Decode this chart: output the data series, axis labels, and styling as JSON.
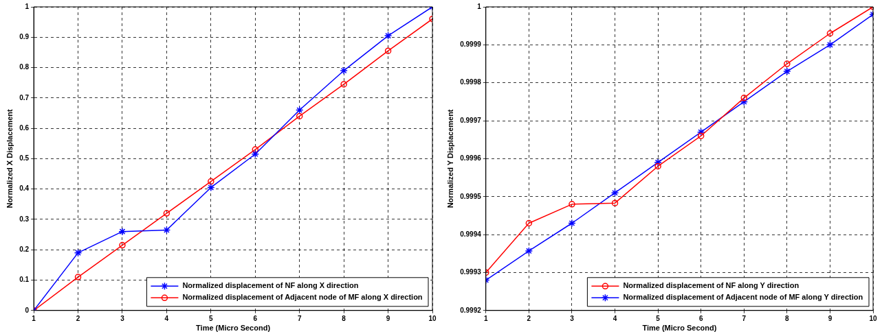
{
  "chart_data": [
    {
      "type": "line",
      "xlabel": "Time (Micro Second)",
      "ylabel": "Normalized X Displacement",
      "x": [
        1,
        2,
        3,
        4,
        5,
        6,
        7,
        8,
        9,
        10
      ],
      "xlim": [
        1,
        10
      ],
      "xticks": [
        1,
        2,
        3,
        4,
        5,
        6,
        7,
        8,
        9,
        10
      ],
      "ylim": [
        0,
        1
      ],
      "yticks": [
        0,
        0.1,
        0.2,
        0.3,
        0.4,
        0.5,
        0.6,
        0.7,
        0.8,
        0.9,
        1
      ],
      "grid": true,
      "legend": "bottom right",
      "line_style": "solid",
      "series": [
        {
          "name": "Normalized displacement of NF along X direction",
          "color": "#0000ff",
          "marker": "cross",
          "values": [
            0,
            0.19,
            0.26,
            0.265,
            0.405,
            0.515,
            0.66,
            0.79,
            0.905,
            1.0
          ]
        },
        {
          "name": "Normalized displacement of Adjacent node of MF along X direction",
          "color": "#ff0000",
          "marker": "circle",
          "values": [
            0,
            0.11,
            0.215,
            0.32,
            0.425,
            0.53,
            0.64,
            0.745,
            0.855,
            0.96
          ]
        }
      ]
    },
    {
      "type": "line",
      "xlabel": "Time (Micro Second)",
      "ylabel": "Normalized Y Displacement",
      "x": [
        1,
        2,
        3,
        4,
        5,
        6,
        7,
        8,
        9,
        10
      ],
      "xlim": [
        1,
        10
      ],
      "xticks": [
        1,
        2,
        3,
        4,
        5,
        6,
        7,
        8,
        9,
        10
      ],
      "ylim": [
        0.9992,
        1
      ],
      "yticks": [
        0.9992,
        0.9993,
        0.9994,
        0.9995,
        0.9996,
        0.9997,
        0.9998,
        0.9999,
        1
      ],
      "grid": true,
      "legend": "bottom right",
      "line_style": "solid",
      "series": [
        {
          "name": "Normalized displacement of NF along Y direction",
          "color": "#ff0000",
          "marker": "circle",
          "values": [
            0.9993,
            0.99943,
            0.99948,
            0.999483,
            0.99958,
            0.99966,
            0.99976,
            0.99985,
            0.99993,
            1.0
          ]
        },
        {
          "name": "Normalized displacement of Adjacent node of MF along Y direction",
          "color": "#0000ff",
          "marker": "cross",
          "values": [
            0.99928,
            0.999357,
            0.99943,
            0.99951,
            0.99959,
            0.99967,
            0.99975,
            0.99983,
            0.9999,
            0.99998
          ]
        }
      ]
    }
  ]
}
